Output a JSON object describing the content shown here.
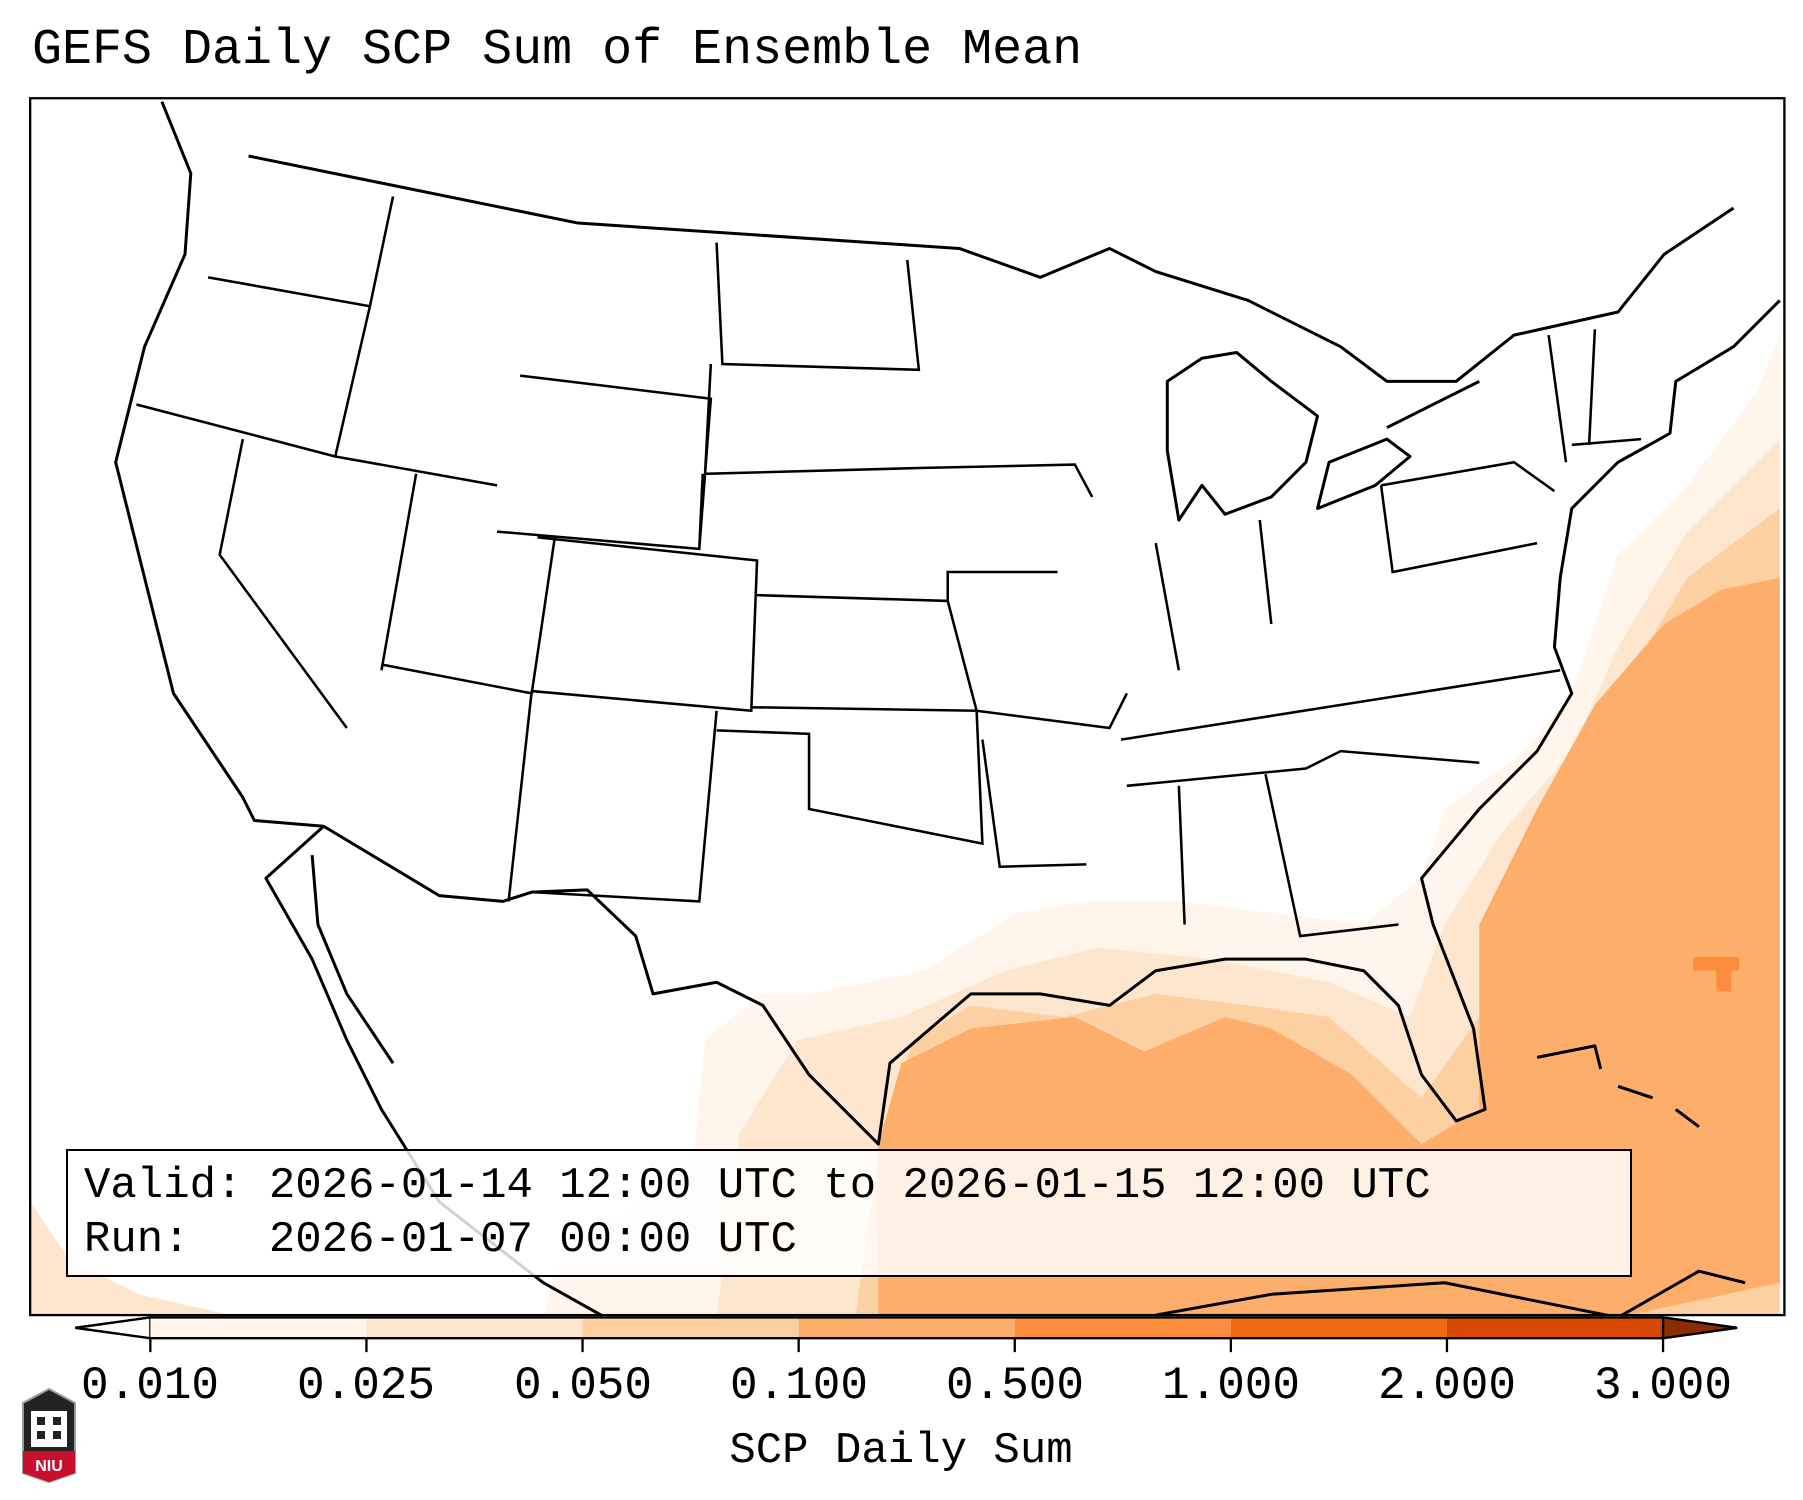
{
  "title": "GEFS Daily SCP Sum of Ensemble Mean",
  "info": {
    "valid": "Valid: 2026-01-14 12:00 UTC to 2026-01-15 12:00 UTC",
    "run": "Run:   2026-01-07 00:00 UTC"
  },
  "colorbar": {
    "label": "SCP Daily Sum",
    "ticks": [
      "0.010",
      "0.025",
      "0.050",
      "0.100",
      "0.500",
      "1.000",
      "2.000",
      "3.000"
    ],
    "colors": [
      "#fff5eb",
      "#fee6ce",
      "#fdd0a2",
      "#fdae6b",
      "#fd8d3c",
      "#f16913",
      "#d94801",
      "#8c2d04"
    ]
  },
  "logo": {
    "text": "NIU"
  }
}
